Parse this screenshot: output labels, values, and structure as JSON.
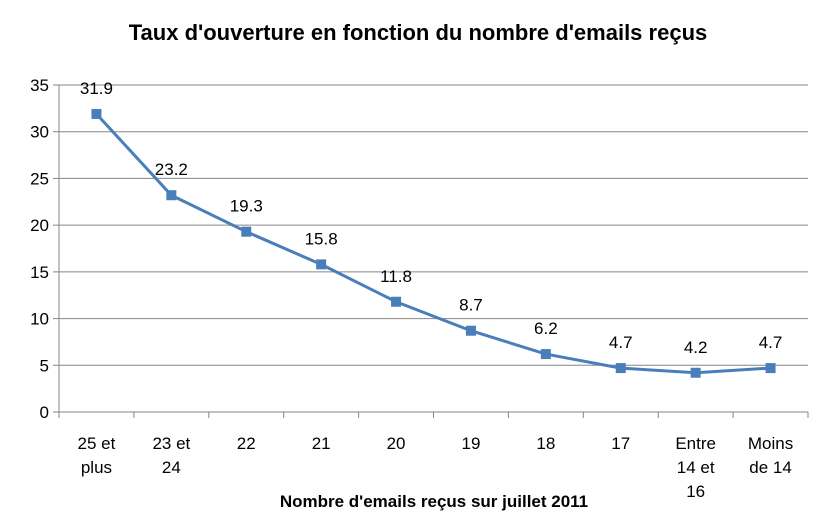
{
  "chart_data": {
    "type": "line",
    "title": "Taux d'ouverture en fonction du nombre d'emails reçus",
    "xlabel": "Nombre d'emails reçus sur juillet 2011",
    "ylabel": "",
    "ylim": [
      0,
      35
    ],
    "yticks": [
      0,
      5,
      10,
      15,
      20,
      25,
      30,
      35
    ],
    "grid": true,
    "categories": [
      [
        "25 et",
        "plus"
      ],
      [
        "23 et",
        "24"
      ],
      [
        "22"
      ],
      [
        "21"
      ],
      [
        "20"
      ],
      [
        "19"
      ],
      [
        "18"
      ],
      [
        "17"
      ],
      [
        "Entre",
        "14 et",
        "16"
      ],
      [
        "Moins",
        "de 14"
      ]
    ],
    "series": [
      {
        "values": [
          31.9,
          23.2,
          19.3,
          15.8,
          11.8,
          8.7,
          6.2,
          4.7,
          4.2,
          4.7
        ],
        "labels": [
          "31.9",
          "23.2",
          "19.3",
          "15.8",
          "11.8",
          "8.7",
          "6.2",
          "4.7",
          "4.2",
          "4.7"
        ],
        "color": "#4a7ebb"
      }
    ],
    "grid_color": "#868686",
    "axis_color": "#868686"
  }
}
